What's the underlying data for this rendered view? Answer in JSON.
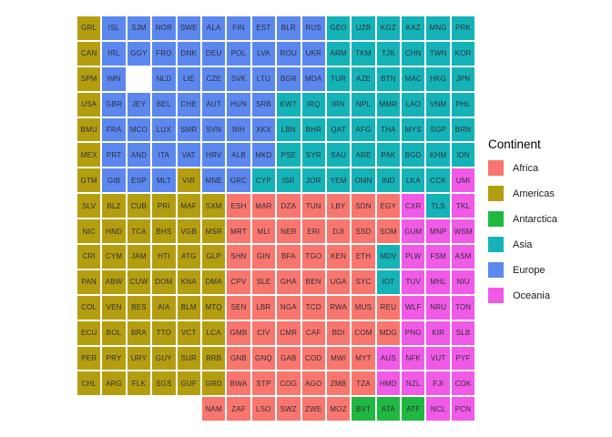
{
  "legend": {
    "title": "Continent",
    "items": [
      {
        "label": "Africa",
        "color": "#F8766D"
      },
      {
        "label": "Americas",
        "color": "#B49E10"
      },
      {
        "label": "Antarctica",
        "color": "#1FB841"
      },
      {
        "label": "Asia",
        "color": "#14B3B7"
      },
      {
        "label": "Europe",
        "color": "#5B87EE"
      },
      {
        "label": "Oceania",
        "color": "#F05AE6"
      }
    ]
  },
  "chart_data": {
    "type": "heatmap",
    "subtype": "tile-grid-world-map",
    "title": "",
    "legend_title": "Continent",
    "legend_position": "right",
    "grid_columns": 16,
    "grid_rows": 16,
    "continent_codes": {
      "AF": "Africa",
      "AM": "Americas",
      "AN": "Antarctica",
      "AS": "Asia",
      "EU": "Europe",
      "OC": "Oceania"
    },
    "rows": [
      [
        "GRL.AM",
        "ISL.EU",
        "SJM.EU",
        "NOR.EU",
        "SWE.EU",
        "ALA.EU",
        "FIN.EU",
        "EST.EU",
        "BLR.EU",
        "RUS.EU",
        "GEO.AS",
        "UZB.AS",
        "KGZ.AS",
        "KAZ.AS",
        "MNG.AS",
        "PRK.AS"
      ],
      [
        "CAN.AM",
        "IRL.EU",
        "GGY.EU",
        "FRO.EU",
        "DNK.EU",
        "DEU.EU",
        "POL.EU",
        "LVA.EU",
        "ROU.EU",
        "UKR.EU",
        "ARM.AS",
        "TKM.AS",
        "TJK.AS",
        "CHN.AS",
        "TWN.AS",
        "KOR.AS"
      ],
      [
        "SPM.AM",
        "IMN.EU",
        "",
        "NLD.EU",
        "LIE.EU",
        "CZE.EU",
        "SVK.EU",
        "LTU.EU",
        "BGR.EU",
        "MDA.EU",
        "TUR.AS",
        "AZE.AS",
        "BTN.AS",
        "MAC.AS",
        "HKG.AS",
        "JPN.AS"
      ],
      [
        "USA.AM",
        "GBR.EU",
        "JEY.EU",
        "BEL.EU",
        "CHE.EU",
        "AUT.EU",
        "HUN.EU",
        "SRB.EU",
        "KWT.AS",
        "IRQ.AS",
        "IRN.AS",
        "NPL.AS",
        "MMR.AS",
        "LAO.AS",
        "VNM.AS",
        "PHL.AS"
      ],
      [
        "BMU.AM",
        "FRA.EU",
        "MCO.EU",
        "LUX.EU",
        "SMR.EU",
        "SVN.EU",
        "BIH.EU",
        "XKX.EU",
        "LBN.AS",
        "BHR.AS",
        "QAT.AS",
        "AFG.AS",
        "THA.AS",
        "MYS.AS",
        "SGP.AS",
        "BRN.AS"
      ],
      [
        "MEX.AM",
        "PRT.EU",
        "AND.EU",
        "ITA.EU",
        "VAT.EU",
        "HRV.EU",
        "ALB.EU",
        "MKD.EU",
        "PSE.AS",
        "SYR.AS",
        "SAU.AS",
        "ARE.AS",
        "PAK.AS",
        "BGD.AS",
        "KHM.AS",
        "IDN.AS"
      ],
      [
        "GTM.AM",
        "GIB.EU",
        "ESP.EU",
        "MLT.EU",
        "VIR.AM",
        "MNE.EU",
        "GRC.EU",
        "CYP.AS",
        "ISR.AS",
        "JOR.AS",
        "YEM.AS",
        "OMN.AS",
        "IND.AS",
        "LKA.AS",
        "CCK.AS",
        "UMI.OC"
      ],
      [
        "SLV.AM",
        "BLZ.AM",
        "CUB.AM",
        "PRI.AM",
        "MAF.AM",
        "SXM.AM",
        "ESH.AF",
        "MAR.AF",
        "DZA.AF",
        "TUN.AF",
        "LBY.AF",
        "SDN.AF",
        "EGY.AF",
        "CXR.OC",
        "TLS.AS",
        "TKL.OC"
      ],
      [
        "NIC.AM",
        "HND.AM",
        "TCA.AM",
        "BHS.AM",
        "VGB.AM",
        "MSR.AM",
        "MRT.AF",
        "MLI.AF",
        "NER.AF",
        "ERI.AF",
        "DJI.AF",
        "SSD.AF",
        "SOM.AF",
        "GUM.OC",
        "MNP.OC",
        "WSM.OC"
      ],
      [
        "CRI.AM",
        "CYM.AM",
        "JAM.AM",
        "HTI.AM",
        "ATG.AM",
        "GLP.AM",
        "SHN.AF",
        "GIN.AF",
        "BFA.AF",
        "TGO.AF",
        "KEN.AF",
        "ETH.AF",
        "MDV.AS",
        "PLW.OC",
        "FSM.OC",
        "ASM.OC"
      ],
      [
        "PAN.AM",
        "ABW.AM",
        "CUW.AM",
        "DOM.AM",
        "KNA.AM",
        "DMA.AM",
        "CPV.AF",
        "SLE.AF",
        "GHA.AF",
        "BEN.AF",
        "UGA.AF",
        "SYC.AF",
        "IOT.AS",
        "TUV.OC",
        "MHL.OC",
        "NIU.OC"
      ],
      [
        "COL.AM",
        "VEN.AM",
        "BES.AM",
        "AIA.AM",
        "BLM.AM",
        "MTQ.AM",
        "SEN.AF",
        "LBR.AF",
        "NGA.AF",
        "TCD.AF",
        "RWA.AF",
        "MUS.AF",
        "REU.AF",
        "WLF.OC",
        "NRU.OC",
        "TON.OC"
      ],
      [
        "ECU.AM",
        "BOL.AM",
        "BRA.AM",
        "TTO.AM",
        "VCT.AM",
        "LCA.AM",
        "GMB.AF",
        "CIV.AF",
        "CMR.AF",
        "CAF.AF",
        "BDI.AF",
        "COM.AF",
        "MDG.AF",
        "PNG.OC",
        "KIR.OC",
        "SLB.OC"
      ],
      [
        "PER.AM",
        "PRY.AM",
        "URY.AM",
        "GUY.AM",
        "SUR.AM",
        "BRB.AM",
        "GNB.AF",
        "GNQ.AF",
        "GAB.AF",
        "COD.AF",
        "MWI.AF",
        "MYT.AF",
        "AUS.OC",
        "NFK.OC",
        "VUT.OC",
        "PYF.OC"
      ],
      [
        "CHL.AM",
        "ARG.AM",
        "FLK.AM",
        "SGS.AM",
        "GUF.AM",
        "GRD.AM",
        "BWA.AF",
        "STP.AF",
        "COG.AF",
        "AGO.AF",
        "ZMB.AF",
        "TZA.AF",
        "HMD.OC",
        "NZL.OC",
        "FJI.OC",
        "COK.OC"
      ],
      [
        "",
        "",
        "",
        "",
        "",
        "NAM.AF",
        "ZAF.AF",
        "LSO.AF",
        "SWZ.AF",
        "ZWE.AF",
        "MOZ.AF",
        "BVT.AN",
        "ATA.AN",
        "ATF.AN",
        "NCL.OC",
        "PCN.OC"
      ]
    ]
  }
}
